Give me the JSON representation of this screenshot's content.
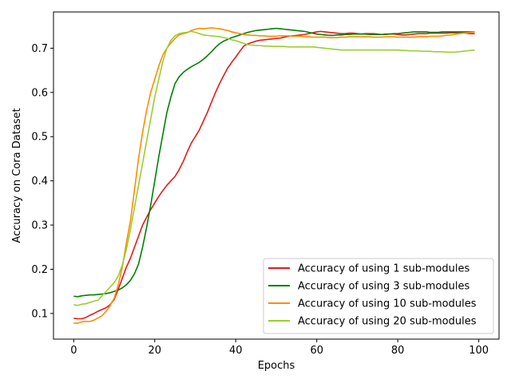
{
  "chart_data": {
    "type": "line",
    "xlabel": "Epochs",
    "ylabel": "Accuracy on Cora Dataset",
    "xlim": [
      -5,
      105
    ],
    "ylim": [
      0.042,
      0.782
    ],
    "xticks": [
      0,
      20,
      40,
      60,
      80,
      100
    ],
    "yticks": [
      0.1,
      0.2,
      0.3,
      0.4,
      0.5,
      0.6,
      0.7
    ],
    "grid": false,
    "legend_position": "lower-right",
    "x": [
      0,
      1,
      2,
      3,
      4,
      5,
      6,
      7,
      8,
      9,
      10,
      11,
      12,
      13,
      14,
      15,
      16,
      17,
      18,
      19,
      20,
      21,
      22,
      23,
      24,
      25,
      26,
      27,
      28,
      29,
      30,
      31,
      32,
      33,
      34,
      35,
      36,
      37,
      38,
      39,
      40,
      41,
      42,
      43,
      44,
      45,
      46,
      47,
      48,
      49,
      50,
      51,
      52,
      53,
      54,
      55,
      56,
      57,
      58,
      59,
      60,
      61,
      62,
      63,
      64,
      65,
      66,
      67,
      68,
      69,
      70,
      71,
      72,
      73,
      74,
      75,
      76,
      77,
      78,
      79,
      80,
      81,
      82,
      83,
      84,
      85,
      86,
      87,
      88,
      89,
      90,
      91,
      92,
      93,
      94,
      95,
      96,
      97,
      98,
      99
    ],
    "series": [
      {
        "name": "Accuracy of using 1 sub-modules",
        "color": "#e41a1c",
        "values": [
          0.089,
          0.088,
          0.088,
          0.091,
          0.096,
          0.1,
          0.105,
          0.109,
          0.113,
          0.12,
          0.132,
          0.155,
          0.18,
          0.205,
          0.225,
          0.25,
          0.275,
          0.3,
          0.318,
          0.335,
          0.35,
          0.365,
          0.378,
          0.39,
          0.4,
          0.41,
          0.425,
          0.443,
          0.465,
          0.485,
          0.5,
          0.515,
          0.535,
          0.555,
          0.578,
          0.6,
          0.62,
          0.638,
          0.655,
          0.668,
          0.68,
          0.693,
          0.705,
          0.71,
          0.713,
          0.716,
          0.718,
          0.719,
          0.72,
          0.721,
          0.722,
          0.723,
          0.725,
          0.727,
          0.728,
          0.729,
          0.73,
          0.731,
          0.733,
          0.735,
          0.737,
          0.738,
          0.737,
          0.736,
          0.735,
          0.734,
          0.733,
          0.733,
          0.734,
          0.734,
          0.733,
          0.732,
          0.733,
          0.733,
          0.733,
          0.732,
          0.731,
          0.731,
          0.732,
          0.732,
          0.731,
          0.73,
          0.73,
          0.731,
          0.732,
          0.733,
          0.733,
          0.733,
          0.734,
          0.734,
          0.734,
          0.734,
          0.734,
          0.735,
          0.735,
          0.735,
          0.735,
          0.734,
          0.733,
          0.733
        ]
      },
      {
        "name": "Accuracy of using 3 sub-modules",
        "color": "#008000",
        "values": [
          0.139,
          0.138,
          0.14,
          0.141,
          0.142,
          0.142,
          0.143,
          0.144,
          0.145,
          0.147,
          0.15,
          0.153,
          0.158,
          0.165,
          0.175,
          0.19,
          0.212,
          0.25,
          0.295,
          0.345,
          0.4,
          0.455,
          0.505,
          0.555,
          0.59,
          0.62,
          0.635,
          0.645,
          0.652,
          0.658,
          0.663,
          0.668,
          0.675,
          0.683,
          0.692,
          0.702,
          0.71,
          0.716,
          0.72,
          0.724,
          0.727,
          0.73,
          0.733,
          0.736,
          0.738,
          0.74,
          0.741,
          0.742,
          0.743,
          0.744,
          0.745,
          0.744,
          0.743,
          0.742,
          0.741,
          0.74,
          0.739,
          0.738,
          0.736,
          0.734,
          0.732,
          0.731,
          0.73,
          0.729,
          0.729,
          0.73,
          0.73,
          0.731,
          0.731,
          0.732,
          0.732,
          0.732,
          0.732,
          0.731,
          0.731,
          0.731,
          0.731,
          0.732,
          0.732,
          0.733,
          0.733,
          0.734,
          0.735,
          0.736,
          0.737,
          0.737,
          0.737,
          0.737,
          0.736,
          0.736,
          0.736,
          0.737,
          0.737,
          0.737,
          0.737,
          0.737,
          0.737,
          0.737,
          0.737,
          0.737
        ]
      },
      {
        "name": "Accuracy of using 10 sub-modules",
        "color": "#ff8c00",
        "values": [
          0.078,
          0.078,
          0.081,
          0.082,
          0.082,
          0.085,
          0.09,
          0.095,
          0.105,
          0.118,
          0.135,
          0.165,
          0.205,
          0.26,
          0.31,
          0.38,
          0.45,
          0.51,
          0.56,
          0.6,
          0.63,
          0.66,
          0.685,
          0.7,
          0.712,
          0.722,
          0.73,
          0.733,
          0.735,
          0.74,
          0.743,
          0.745,
          0.744,
          0.745,
          0.746,
          0.745,
          0.744,
          0.742,
          0.74,
          0.737,
          0.735,
          0.733,
          0.731,
          0.73,
          0.729,
          0.729,
          0.728,
          0.728,
          0.727,
          0.727,
          0.727,
          0.728,
          0.728,
          0.728,
          0.727,
          0.727,
          0.727,
          0.726,
          0.726,
          0.725,
          0.725,
          0.725,
          0.725,
          0.724,
          0.724,
          0.724,
          0.725,
          0.725,
          0.726,
          0.726,
          0.726,
          0.726,
          0.726,
          0.726,
          0.725,
          0.725,
          0.725,
          0.726,
          0.726,
          0.726,
          0.725,
          0.725,
          0.725,
          0.725,
          0.725,
          0.726,
          0.726,
          0.726,
          0.727,
          0.727,
          0.727,
          0.728,
          0.729,
          0.73,
          0.731,
          0.733,
          0.734,
          0.735,
          0.736,
          0.737
        ]
      },
      {
        "name": "Accuracy of using 20 sub-modules",
        "color": "#9acd32",
        "values": [
          0.12,
          0.118,
          0.121,
          0.122,
          0.125,
          0.128,
          0.13,
          0.14,
          0.15,
          0.16,
          0.17,
          0.185,
          0.21,
          0.245,
          0.29,
          0.34,
          0.39,
          0.44,
          0.49,
          0.54,
          0.59,
          0.63,
          0.67,
          0.7,
          0.718,
          0.728,
          0.733,
          0.735,
          0.736,
          0.738,
          0.736,
          0.733,
          0.73,
          0.729,
          0.728,
          0.727,
          0.726,
          0.724,
          0.722,
          0.719,
          0.717,
          0.714,
          0.711,
          0.708,
          0.707,
          0.706,
          0.706,
          0.705,
          0.705,
          0.704,
          0.704,
          0.704,
          0.704,
          0.703,
          0.703,
          0.703,
          0.703,
          0.703,
          0.703,
          0.703,
          0.702,
          0.701,
          0.7,
          0.699,
          0.698,
          0.697,
          0.696,
          0.696,
          0.696,
          0.696,
          0.696,
          0.696,
          0.696,
          0.696,
          0.696,
          0.696,
          0.696,
          0.696,
          0.696,
          0.696,
          0.696,
          0.695,
          0.695,
          0.694,
          0.694,
          0.694,
          0.693,
          0.693,
          0.693,
          0.692,
          0.692,
          0.692,
          0.691,
          0.691,
          0.691,
          0.692,
          0.693,
          0.694,
          0.695,
          0.696
        ]
      }
    ]
  }
}
